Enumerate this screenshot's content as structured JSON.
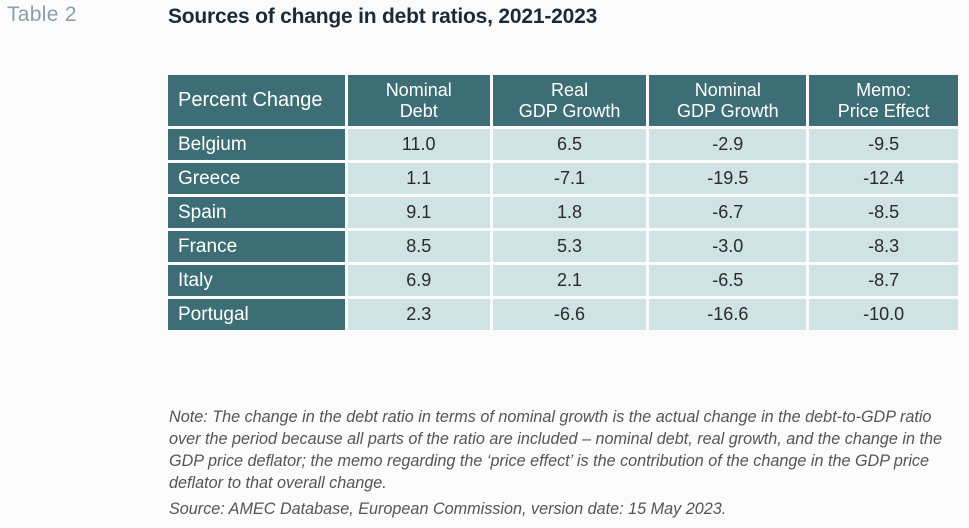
{
  "table_label": "Table 2",
  "title": "Sources of change in debt ratios, 2021-2023",
  "table": {
    "row_header": "Percent Change",
    "columns": [
      {
        "line1": "Nominal",
        "line2": "Debt"
      },
      {
        "line1": "Real",
        "line2": "GDP Growth"
      },
      {
        "line1": "Nominal",
        "line2": "GDP Growth"
      },
      {
        "line1": "Memo:",
        "line2": "Price Effect"
      }
    ],
    "rows": [
      {
        "country": "Belgium",
        "values": [
          "11.0",
          "6.5",
          "-2.9",
          "-9.5"
        ]
      },
      {
        "country": "Greece",
        "values": [
          "1.1",
          "-7.1",
          "-19.5",
          "-12.4"
        ]
      },
      {
        "country": "Spain",
        "values": [
          "9.1",
          "1.8",
          "-6.7",
          "-8.5"
        ]
      },
      {
        "country": "France",
        "values": [
          "8.5",
          "5.3",
          "-3.0",
          "-8.3"
        ]
      },
      {
        "country": "Italy",
        "values": [
          "6.9",
          "2.1",
          "-6.5",
          "-8.7"
        ]
      },
      {
        "country": "Portugal",
        "values": [
          "2.3",
          "-6.6",
          "-16.6",
          "-10.0"
        ]
      }
    ]
  },
  "note": "Note: The change in the debt ratio in terms of nominal growth is the actual change in the debt-to-GDP ratio over the period because all parts of the ratio are included – nominal debt, real growth, and the change in the GDP price deflator; the memo regarding the ‘price effect’ is the contribution of the change in the GDP price deflator to that overall change.",
  "source": "Source: AMEC Database, European Commission, version date: 15 May 2023."
}
